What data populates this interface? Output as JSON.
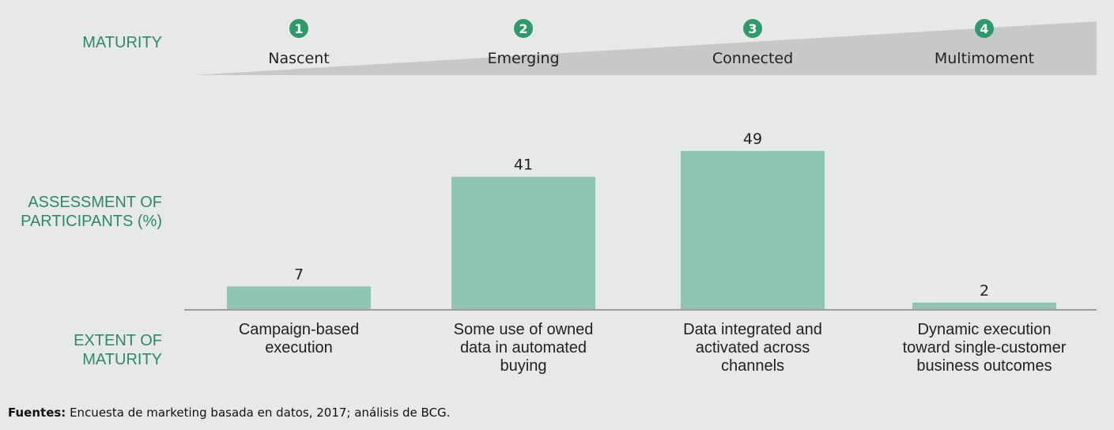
{
  "colors": {
    "background": "#e7e8e9",
    "bar": "#8fc4b4",
    "badge": "#2e9a6a",
    "wedge": "#c7c8c9",
    "accent_text": "#2e8a64"
  },
  "row_labels": {
    "maturity": "MATURITY",
    "assessment": [
      "ASSESSMENT OF",
      "PARTICIPANTS (%)"
    ],
    "extent": [
      "EXTENT OF",
      "MATURITY"
    ]
  },
  "chart_data": {
    "type": "bar",
    "title": "",
    "xlabel": "EXTENT OF MATURITY",
    "ylabel": "ASSESSMENT OF PARTICIPANTS (%)",
    "ylim": [
      0,
      60
    ],
    "stages": [
      {
        "number": "1",
        "label": "Nascent"
      },
      {
        "number": "2",
        "label": "Emerging"
      },
      {
        "number": "3",
        "label": "Connected"
      },
      {
        "number": "4",
        "label": "Multimoment"
      }
    ],
    "categories": [
      [
        "Campaign-based",
        "execution"
      ],
      [
        "Some use of owned",
        "data in automated",
        "buying"
      ],
      [
        "Data integrated and",
        "activated across",
        "channels"
      ],
      [
        "Dynamic execution",
        "toward single-customer",
        "business outcomes"
      ]
    ],
    "values": [
      7,
      41,
      49,
      2
    ],
    "value_labels": [
      "7",
      "41",
      "49",
      "2"
    ]
  },
  "source": {
    "label": "Fuentes:",
    "text": " Encuesta de marketing basada en datos, 2017; análisis de BCG."
  }
}
